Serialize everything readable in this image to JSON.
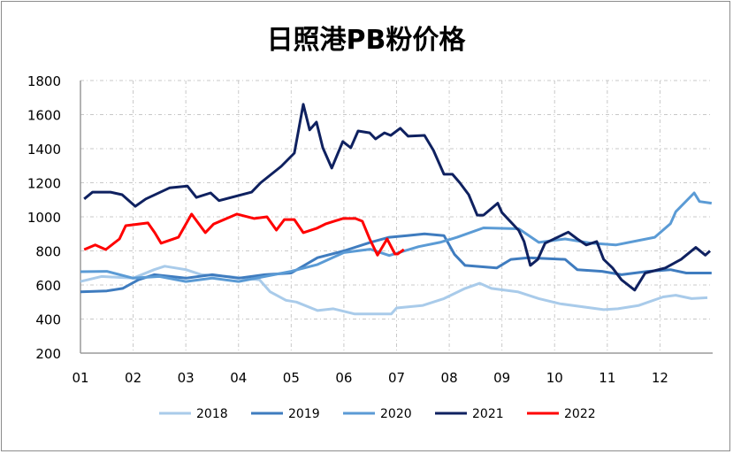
{
  "chart_data": {
    "type": "line",
    "title": "日照港PB粉价格",
    "xlabel": "",
    "ylabel": "",
    "ylim": [
      200,
      1800
    ],
    "xlim": [
      1,
      13
    ],
    "yticks": [
      "200",
      "400",
      "600",
      "800",
      "1000",
      "1200",
      "1400",
      "1600",
      "1800"
    ],
    "xticks": [
      "01",
      "02",
      "03",
      "04",
      "05",
      "06",
      "07",
      "08",
      "09",
      "10",
      "11",
      "12"
    ],
    "grid": true,
    "legend_position": "bottom",
    "series": [
      {
        "name": "2018",
        "color": "#a9cbea",
        "x": [
          1.0,
          1.4,
          2.0,
          2.4,
          2.6,
          3.0,
          3.3,
          3.8,
          4.4,
          4.6,
          4.9,
          5.1,
          5.5,
          5.8,
          6.2,
          6.9,
          7.0,
          7.5,
          7.9,
          8.3,
          8.58,
          8.8,
          9.3,
          9.7,
          10.1,
          10.93,
          11.2,
          11.6,
          12.06,
          12.3,
          12.6,
          12.9
        ],
        "y": [
          620,
          650,
          640,
          690,
          710,
          690,
          660,
          650,
          630,
          560,
          510,
          500,
          450,
          460,
          430,
          430,
          465,
          480,
          520,
          580,
          610,
          580,
          560,
          520,
          490,
          455,
          460,
          480,
          530,
          540,
          520,
          525
        ]
      },
      {
        "name": "2019",
        "color": "#3f7cbf",
        "x": [
          1.0,
          1.5,
          1.8,
          2.1,
          2.4,
          3.0,
          3.5,
          4.0,
          4.5,
          5.0,
          5.5,
          6.0,
          6.5,
          6.86,
          7.2,
          7.53,
          7.9,
          8.1,
          8.3,
          8.9,
          9.17,
          9.5,
          10.2,
          10.43,
          10.9,
          11.27,
          11.77,
          12.2,
          12.5,
          12.98
        ],
        "y": [
          560,
          565,
          580,
          630,
          660,
          640,
          660,
          640,
          660,
          670,
          760,
          800,
          850,
          880,
          890,
          900,
          890,
          780,
          715,
          700,
          750,
          760,
          750,
          690,
          680,
          660,
          680,
          690,
          670,
          670
        ]
      },
      {
        "name": "2020",
        "color": "#5b9bd5",
        "x": [
          1.0,
          1.5,
          2.0,
          2.5,
          3.0,
          3.5,
          4.0,
          4.5,
          5.0,
          5.5,
          6.0,
          6.5,
          6.86,
          7.42,
          7.82,
          8.15,
          8.65,
          9.32,
          9.7,
          10.2,
          10.7,
          11.16,
          11.9,
          12.2,
          12.3,
          12.65,
          12.75,
          12.98
        ],
        "y": [
          678,
          680,
          640,
          650,
          620,
          640,
          620,
          650,
          680,
          720,
          790,
          810,
          773,
          825,
          850,
          880,
          935,
          930,
          850,
          870,
          845,
          835,
          880,
          960,
          1030,
          1140,
          1090,
          1080
        ]
      },
      {
        "name": "2021",
        "color": "#0f2160",
        "x": [
          1.07,
          1.23,
          1.57,
          1.79,
          2.04,
          2.24,
          2.69,
          3.03,
          3.2,
          3.47,
          3.63,
          4.25,
          4.42,
          4.81,
          5.06,
          5.23,
          5.35,
          5.48,
          5.6,
          5.77,
          5.98,
          6.13,
          6.27,
          6.49,
          6.6,
          6.77,
          6.89,
          7.07,
          7.22,
          7.53,
          7.7,
          7.9,
          8.06,
          8.2,
          8.37,
          8.53,
          8.65,
          8.92,
          9.0,
          9.32,
          9.42,
          9.54,
          9.68,
          9.82,
          10.26,
          10.43,
          10.6,
          10.8,
          10.93,
          11.1,
          11.27,
          11.52,
          11.72,
          12.1,
          12.4,
          12.68,
          12.86,
          12.95
        ],
        "y": [
          1105,
          1145,
          1145,
          1130,
          1062,
          1105,
          1170,
          1180,
          1114,
          1140,
          1095,
          1145,
          1200,
          1296,
          1374,
          1660,
          1510,
          1556,
          1405,
          1286,
          1442,
          1405,
          1504,
          1493,
          1457,
          1493,
          1478,
          1520,
          1473,
          1478,
          1390,
          1250,
          1250,
          1200,
          1130,
          1010,
          1010,
          1080,
          1025,
          920,
          855,
          715,
          750,
          845,
          910,
          870,
          835,
          855,
          750,
          700,
          630,
          570,
          670,
          700,
          750,
          820,
          775,
          800
        ]
      },
      {
        "name": "2022",
        "color": "#ff0000",
        "x": [
          1.07,
          1.28,
          1.48,
          1.74,
          1.86,
          2.28,
          2.41,
          2.53,
          2.86,
          3.11,
          3.37,
          3.53,
          3.97,
          4.3,
          4.54,
          4.72,
          4.87,
          5.06,
          5.23,
          5.48,
          5.65,
          5.98,
          6.22,
          6.35,
          6.49,
          6.64,
          6.82,
          6.97,
          7.02,
          7.14
        ],
        "y": [
          808,
          835,
          808,
          870,
          948,
          964,
          907,
          845,
          880,
          1016,
          907,
          958,
          1016,
          990,
          1000,
          922,
          984,
          984,
          907,
          932,
          958,
          990,
          990,
          974,
          870,
          775,
          870,
          782,
          782,
          808
        ]
      }
    ]
  }
}
